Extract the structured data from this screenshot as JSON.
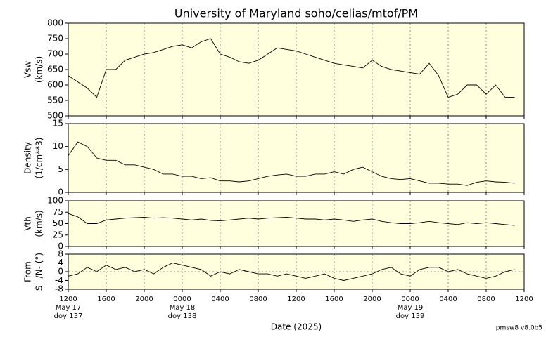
{
  "chart_data": {
    "type": "line",
    "title": "University of Maryland  soho/celias/mtof/PM",
    "xlabel": "Date (2025)",
    "footnote": "pmsw8 v8.0b5",
    "grid": true,
    "background": "#ffffdd",
    "x": [
      12,
      13,
      14,
      15,
      16,
      17,
      18,
      19,
      20,
      21,
      22,
      23,
      24,
      25,
      26,
      27,
      28,
      29,
      30,
      31,
      32,
      33,
      34,
      35,
      36,
      37,
      38,
      39,
      40,
      41,
      42,
      43,
      44,
      45,
      46,
      47,
      48,
      49,
      50,
      51,
      52,
      53,
      54,
      55,
      56,
      57,
      58,
      59
    ],
    "xlim": [
      12,
      60
    ],
    "xticks": [
      {
        "value": 12,
        "label": "1200"
      },
      {
        "value": 16,
        "label": "1600"
      },
      {
        "value": 20,
        "label": "2000"
      },
      {
        "value": 24,
        "label": "0000"
      },
      {
        "value": 28,
        "label": "0400"
      },
      {
        "value": 32,
        "label": "0800"
      },
      {
        "value": 36,
        "label": "1200"
      },
      {
        "value": 40,
        "label": "1600"
      },
      {
        "value": 44,
        "label": "2000"
      },
      {
        "value": 48,
        "label": "0000"
      },
      {
        "value": 52,
        "label": "0400"
      },
      {
        "value": 56,
        "label": "0800"
      },
      {
        "value": 60,
        "label": "1200"
      }
    ],
    "date_labels": [
      {
        "x": 12,
        "lines": [
          "May 17",
          "doy 137"
        ]
      },
      {
        "x": 24,
        "lines": [
          "May 18",
          "doy 138"
        ]
      },
      {
        "x": 48,
        "lines": [
          "May 19",
          "doy 139"
        ]
      }
    ],
    "series": [
      {
        "ylabel": [
          "Vsw",
          "(km/s)"
        ],
        "color": "#000000",
        "ylim": [
          500,
          800
        ],
        "yticks": [
          500,
          550,
          600,
          650,
          700,
          750,
          800
        ],
        "values": [
          630,
          610,
          590,
          560,
          650,
          650,
          680,
          690,
          700,
          705,
          715,
          725,
          730,
          720,
          740,
          750,
          700,
          690,
          675,
          670,
          680,
          700,
          720,
          715,
          710,
          700,
          690,
          680,
          670,
          665,
          660,
          655,
          680,
          660,
          650,
          645,
          640,
          635,
          670,
          630,
          560,
          570,
          600,
          600,
          570,
          600,
          560,
          560
        ]
      },
      {
        "ylabel": [
          "Density",
          "(1/cm**3)"
        ],
        "color": "#000000",
        "ylim": [
          0,
          15
        ],
        "yticks": [
          0,
          5,
          10,
          15
        ],
        "values": [
          8,
          11,
          10,
          7.5,
          7,
          7,
          6,
          6,
          5.5,
          5,
          4,
          4,
          3.5,
          3.5,
          3,
          3.2,
          2.5,
          2.5,
          2.3,
          2.5,
          3,
          3.5,
          3.8,
          4,
          3.5,
          3.5,
          4,
          4,
          4.5,
          4,
          5,
          5.5,
          4.5,
          3.5,
          3,
          2.8,
          3,
          2.5,
          2,
          2,
          1.8,
          1.8,
          1.5,
          2.2,
          2.5,
          2.3,
          2.2,
          2
        ]
      },
      {
        "ylabel": [
          "Vth",
          "(km/s)"
        ],
        "color": "#000000",
        "ylim": [
          0,
          100
        ],
        "yticks": [
          0,
          25,
          50,
          75,
          100
        ],
        "values": [
          72,
          65,
          50,
          50,
          58,
          60,
          62,
          63,
          64,
          62,
          63,
          62,
          60,
          58,
          60,
          57,
          56,
          58,
          60,
          62,
          60,
          62,
          63,
          64,
          62,
          60,
          60,
          58,
          60,
          58,
          55,
          58,
          60,
          55,
          52,
          50,
          50,
          52,
          55,
          52,
          50,
          48,
          52,
          50,
          52,
          50,
          48,
          46
        ]
      },
      {
        "ylabel": [
          "From",
          "S+/N- (°)"
        ],
        "color": "#000000",
        "ylim": [
          -8,
          8
        ],
        "yticks": [
          -8,
          -4,
          0,
          4,
          8
        ],
        "zero_line": true,
        "values": [
          -2,
          -1,
          2,
          0,
          3,
          1,
          2,
          0,
          1,
          -1,
          2,
          4,
          3,
          2,
          1,
          -2,
          0,
          -1,
          1,
          0,
          -1,
          -1,
          -2,
          -1,
          -2,
          -3,
          -2,
          -1,
          -3,
          -4,
          -3,
          -2,
          -1,
          1,
          2,
          -1,
          -2,
          1,
          2,
          2,
          0,
          1,
          -1,
          -2,
          -3,
          -2,
          0,
          1
        ]
      }
    ]
  }
}
